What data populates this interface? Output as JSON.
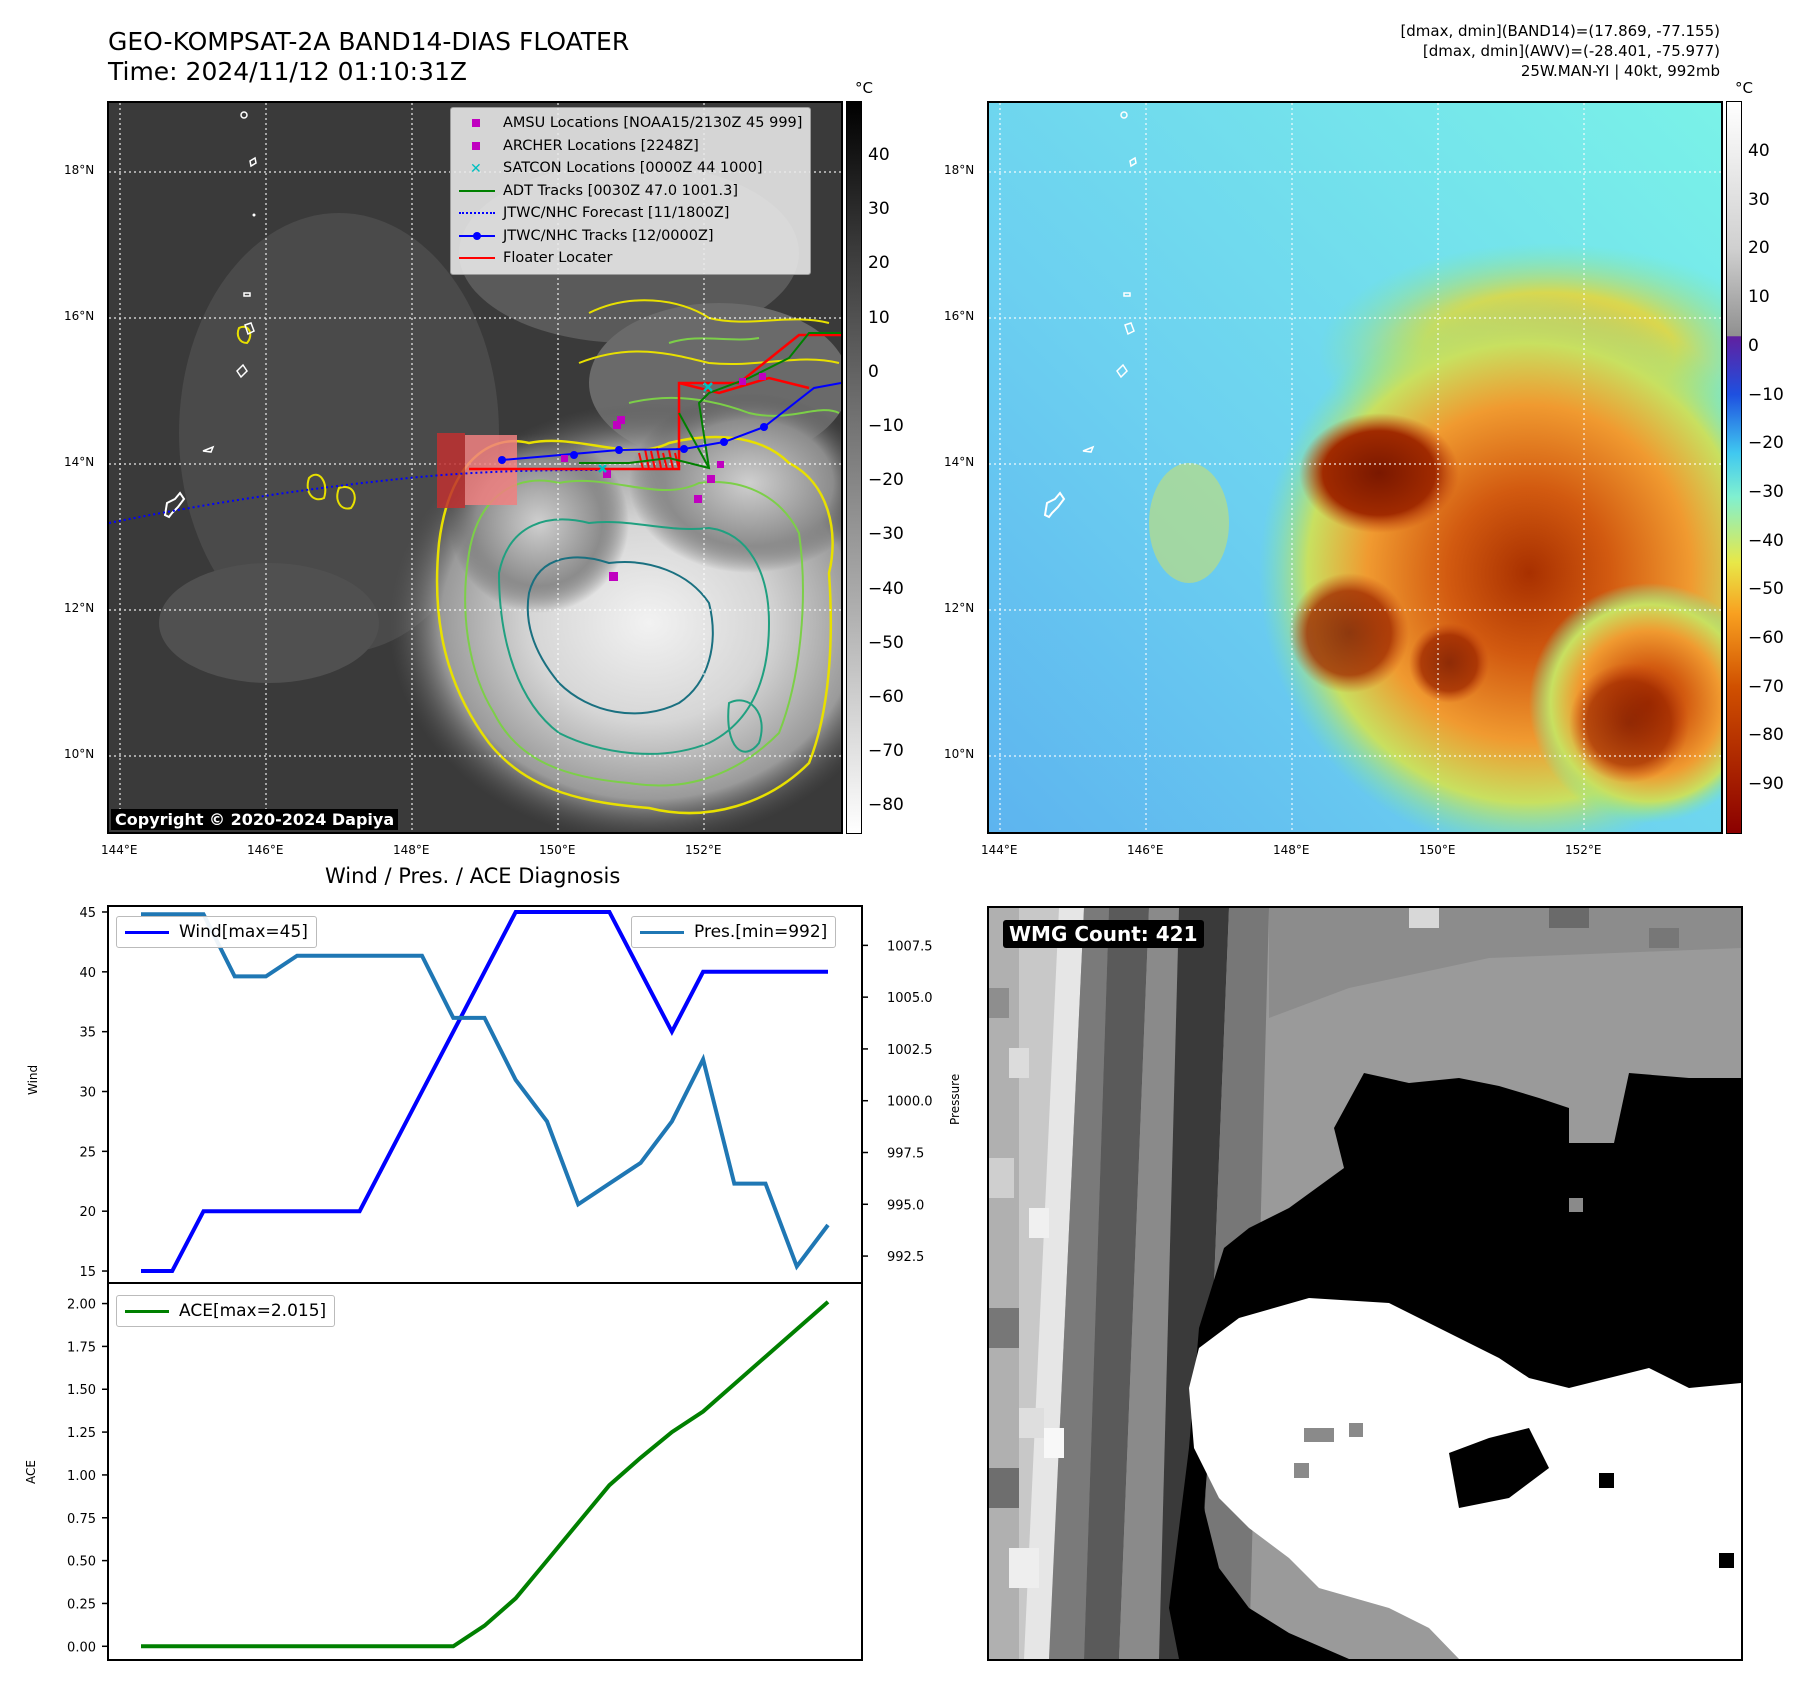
{
  "header": {
    "title_line1": "GEO-KOMPSAT-2A BAND14-DIAS FLOATER",
    "title_line2": "Time: 2024/11/12 01:10:31Z",
    "info_line1": "[dmax, dmin](BAND14)=(17.869, -77.155)",
    "info_line2": "[dmax, dmin](AWV)=(-28.401, -75.977)",
    "info_line3": "25W.MAN-YI | 40kt, 992mb"
  },
  "maps": {
    "lon_ticks": [
      "144°E",
      "146°E",
      "148°E",
      "150°E",
      "152°E"
    ],
    "lat_ticks": [
      "18°N",
      "16°N",
      "14°N",
      "12°N",
      "10°N"
    ],
    "colorbar_unit": "°C",
    "left_colorbar_ticks": [
      "40",
      "30",
      "20",
      "10",
      "0",
      "−10",
      "−20",
      "−30",
      "−40",
      "−50",
      "−60",
      "−70",
      "−80"
    ],
    "right_colorbar_ticks": [
      "40",
      "30",
      "20",
      "10",
      "0",
      "−10",
      "−20",
      "−30",
      "−40",
      "−50",
      "−60",
      "−70",
      "−80",
      "−90"
    ],
    "copyright": "Copyright © 2020-2024 Dapiya",
    "legend": [
      {
        "label": "AMSU Locations [NOAA15/2130Z 45 999]",
        "color": "#c000c0",
        "style": "square"
      },
      {
        "label": "ARCHER Locations [2248Z]",
        "color": "#c000c0",
        "style": "square"
      },
      {
        "label": "SATCON Locations [0000Z 44 1000]",
        "color": "#00c0c0",
        "style": "x"
      },
      {
        "label": "ADT Tracks [0030Z 47.0 1001.3]",
        "color": "#008000",
        "style": "line"
      },
      {
        "label": "JTWC/NHC Forecast [11/1800Z]",
        "color": "#0000ff",
        "style": "dotted"
      },
      {
        "label": "JTWC/NHC Tracks [12/0000Z]",
        "color": "#0000ff",
        "style": "line-dot"
      },
      {
        "label": "Floater Locater",
        "color": "#ff0000",
        "style": "line"
      }
    ]
  },
  "chart_data": [
    {
      "type": "line",
      "title": "Wind / Pres. / ACE Diagnosis",
      "ylabel": "Wind",
      "ylabel_right": "Pressure",
      "ylim": [
        14,
        45.5
      ],
      "ylim_right": [
        991.2,
        1009.4
      ],
      "yticks": [
        "45",
        "40",
        "35",
        "30",
        "25",
        "20",
        "15"
      ],
      "yticks_right": [
        "1007.5",
        "1005.0",
        "1002.5",
        "1000.0",
        "997.5",
        "995.0",
        "992.5"
      ],
      "series": [
        {
          "name": "Wind[max=45]",
          "axis": "left",
          "color": "#0000ff",
          "values": [
            15,
            15,
            20,
            20,
            20,
            20,
            20,
            20,
            25,
            30,
            35,
            40,
            45,
            45,
            45,
            45,
            40,
            35,
            40,
            40,
            40,
            40,
            40
          ]
        },
        {
          "name": "Pres.[min=992]",
          "axis": "right",
          "color": "#1f77b4",
          "values": [
            1009.0,
            1009.0,
            1009.0,
            1006.0,
            1006.0,
            1007.0,
            1007.0,
            1007.0,
            1007.0,
            1007.0,
            1004.0,
            1004.0,
            1001.0,
            999.0,
            995.0,
            996.0,
            997.0,
            999.0,
            1002.0,
            996.0,
            996.0,
            992.0,
            994.0
          ]
        }
      ]
    },
    {
      "type": "line",
      "ylabel": "ACE",
      "ylim": [
        -0.08,
        2.12
      ],
      "yticks": [
        "2.00",
        "1.75",
        "1.50",
        "1.25",
        "1.00",
        "0.75",
        "0.50",
        "0.25",
        "0.00"
      ],
      "series": [
        {
          "name": "ACE[max=2.015]",
          "color": "#008000",
          "values": [
            0,
            0,
            0,
            0,
            0,
            0,
            0,
            0,
            0,
            0,
            0,
            0.12,
            0.28,
            0.5,
            0.72,
            0.94,
            1.1,
            1.25,
            1.37,
            1.53,
            1.69,
            1.85,
            2.01
          ]
        }
      ]
    }
  ],
  "wmg": {
    "label": "WMG Count: 421"
  }
}
